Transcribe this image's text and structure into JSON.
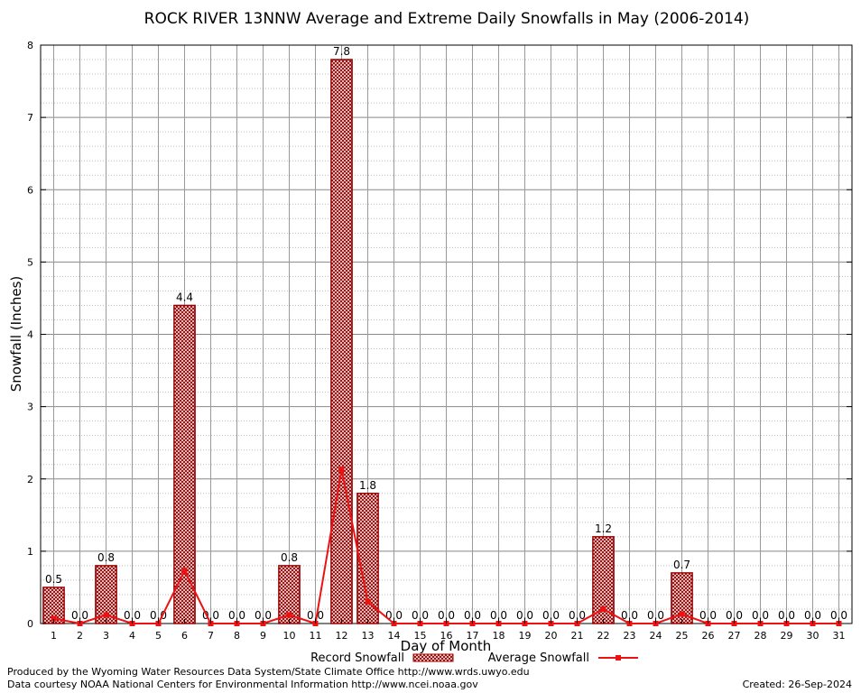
{
  "chart_data": {
    "type": "bar",
    "title": "ROCK RIVER 13NNW Average and Extreme Daily Snowfalls in May (2006-2014)",
    "xlabel": "Day of Month",
    "ylabel": "Snowfall (Inches)",
    "ylim": [
      0,
      8
    ],
    "yticks": [
      "0",
      "1",
      "2",
      "3",
      "4",
      "5",
      "6",
      "7",
      "8"
    ],
    "grid": true,
    "categories": [
      "1",
      "2",
      "3",
      "4",
      "5",
      "6",
      "7",
      "8",
      "9",
      "10",
      "11",
      "12",
      "13",
      "14",
      "15",
      "16",
      "17",
      "18",
      "19",
      "20",
      "21",
      "22",
      "23",
      "24",
      "25",
      "26",
      "27",
      "28",
      "29",
      "30",
      "31"
    ],
    "series": [
      {
        "name": "Record Snowfall",
        "kind": "bar",
        "color": "#990000",
        "values": [
          0.5,
          0.0,
          0.8,
          0.0,
          0.0,
          4.4,
          0.0,
          0.0,
          0.0,
          0.8,
          0.0,
          7.8,
          1.8,
          0.0,
          0.0,
          0.0,
          0.0,
          0.0,
          0.0,
          0.0,
          0.0,
          1.2,
          0.0,
          0.0,
          0.7,
          0.0,
          0.0,
          0.0,
          0.0,
          0.0,
          0.0
        ],
        "labels": [
          "0.5",
          "0.0",
          "0.8",
          "0.0",
          "0.0",
          "4.4",
          "0.0",
          "0.0",
          "0.0",
          "0.8",
          "0.0",
          "7.8",
          "1.8",
          "0.0",
          "0.0",
          "0.0",
          "0.0",
          "0.0",
          "0.0",
          "0.0",
          "0.0",
          "1.2",
          "0.0",
          "0.0",
          "0.7",
          "0.0",
          "0.0",
          "0.0",
          "0.0",
          "0.0",
          "0.0"
        ]
      },
      {
        "name": "Average Snowfall",
        "kind": "line",
        "color": "#ee1111",
        "values": [
          0.07,
          0.0,
          0.12,
          0.0,
          0.0,
          0.73,
          0.0,
          0.0,
          0.0,
          0.12,
          0.0,
          2.13,
          0.3,
          0.0,
          0.0,
          0.0,
          0.0,
          0.0,
          0.0,
          0.0,
          0.0,
          0.2,
          0.0,
          0.0,
          0.13,
          0.0,
          0.0,
          0.0,
          0.0,
          0.0,
          0.0
        ]
      }
    ],
    "legend": "bottom-center"
  },
  "footer": {
    "produced_by": "Produced by the Wyoming Water Resources Data System/State Climate Office http://www.wrds.uwyo.edu",
    "courtesy": "Data courtesy NOAA National Centers for Environmental Information http://www.ncei.noaa.gov",
    "created": "Created:  26-Sep-2024"
  }
}
